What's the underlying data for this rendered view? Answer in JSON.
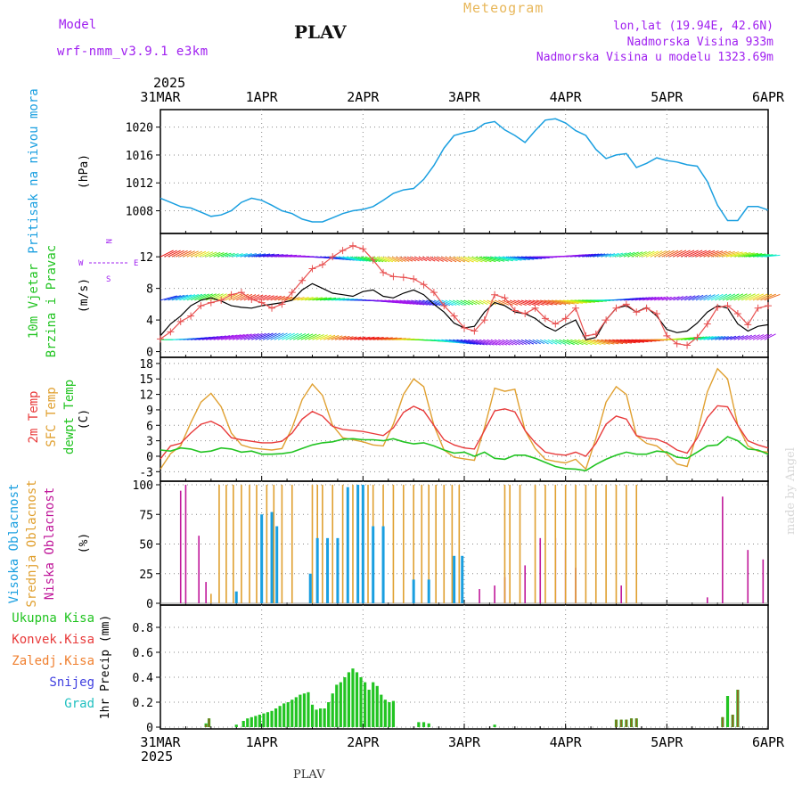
{
  "header": {
    "model_label": "Model",
    "model_name": "wrf-nmm_v3.9.1 e3km",
    "station": "PLAV",
    "product": "Meteogram",
    "lonlat": "lon,lat (19.94E, 42.6N)",
    "elevation": "Nadmorska Visina 933m",
    "model_elevation": "Nadmorska Visina u modelu 1323.69m"
  },
  "footer": {
    "station": "PLAV",
    "credit": "made by Angel"
  },
  "colors": {
    "pressure": "#1a9fe0",
    "tmp2m": "#e83a3a",
    "sfc": "#e0a030",
    "dew": "#22c422",
    "high": "#1a9fe0",
    "mid": "#e0a030",
    "low": "#c0189a",
    "precip": "#22c422",
    "conv": "#e83a3a",
    "frozen": "#f08030",
    "snow": "#4040e0",
    "hail": "#20c0c0",
    "axes": "#000000"
  },
  "chart_data": [
    {
      "type": "line",
      "id": "pressure",
      "ylabel_left": "Pritisak na nivou mora",
      "unit": "(hPa)",
      "ylim": [
        1005,
        1022
      ],
      "yticks": [
        1008,
        1012,
        1016,
        1020
      ],
      "xticks_top": [
        "31MAR",
        "1APR",
        "2APR",
        "3APR",
        "4APR",
        "5APR",
        "6APR"
      ],
      "year_top": "2025",
      "x": [
        0,
        0.1,
        0.2,
        0.3,
        0.4,
        0.5,
        0.6,
        0.7,
        0.8,
        0.9,
        1.0,
        1.1,
        1.2,
        1.3,
        1.4,
        1.5,
        1.6,
        1.7,
        1.8,
        1.9,
        2.0,
        2.1,
        2.2,
        2.3,
        2.4,
        2.5,
        2.6,
        2.7,
        2.8,
        2.9,
        3.0,
        3.1,
        3.2,
        3.3,
        3.4,
        3.5,
        3.6,
        3.7,
        3.8,
        3.9,
        4.0,
        4.1,
        4.2,
        4.3,
        4.4,
        4.5,
        4.6,
        4.7,
        4.8,
        4.9,
        5.0,
        5.1,
        5.2,
        5.3,
        5.4,
        5.5,
        5.6,
        5.7,
        5.8,
        5.9,
        6.0
      ],
      "series": [
        {
          "name": "Pritisak",
          "values": [
            1009.8,
            1009.2,
            1008.6,
            1008.4,
            1007.8,
            1007.2,
            1007.4,
            1008.0,
            1009.2,
            1009.8,
            1009.5,
            1008.8,
            1008.0,
            1007.6,
            1006.8,
            1006.4,
            1006.4,
            1007.0,
            1007.6,
            1008.0,
            1008.2,
            1008.6,
            1009.5,
            1010.5,
            1011.0,
            1011.2,
            1012.5,
            1014.5,
            1017.0,
            1018.8,
            1019.2,
            1019.5,
            1020.5,
            1020.8,
            1019.6,
            1018.8,
            1017.8,
            1019.5,
            1021.0,
            1021.2,
            1020.6,
            1019.5,
            1018.8,
            1016.8,
            1015.5,
            1016.0,
            1016.2,
            1014.2,
            1014.8,
            1015.6,
            1015.2,
            1015.0,
            1014.6,
            1014.4,
            1012.2,
            1008.8,
            1006.6,
            1006.6,
            1008.6,
            1008.6,
            1008.1
          ]
        }
      ]
    },
    {
      "type": "line",
      "id": "wind",
      "ylabel_left": "10m Vjetar",
      "ylabel_left2": "Brzina i Pravac",
      "unit": "(m/s)",
      "compass": [
        "W",
        "N",
        "E",
        "S"
      ],
      "ylim": [
        -0.5,
        14.5
      ],
      "yticks": [
        0,
        4,
        8,
        12
      ],
      "x": [
        0,
        0.1,
        0.2,
        0.3,
        0.4,
        0.5,
        0.6,
        0.7,
        0.8,
        0.9,
        1.0,
        1.1,
        1.2,
        1.3,
        1.4,
        1.5,
        1.6,
        1.7,
        1.8,
        1.9,
        2.0,
        2.1,
        2.2,
        2.3,
        2.4,
        2.5,
        2.6,
        2.7,
        2.8,
        2.9,
        3.0,
        3.1,
        3.2,
        3.3,
        3.4,
        3.5,
        3.6,
        3.7,
        3.8,
        3.9,
        4.0,
        4.1,
        4.2,
        4.3,
        4.4,
        4.5,
        4.6,
        4.7,
        4.8,
        4.9,
        5.0,
        5.1,
        5.2,
        5.3,
        5.4,
        5.5,
        5.6,
        5.7,
        5.8,
        5.9,
        6.0
      ],
      "series": [
        {
          "name": "Brzina",
          "values": [
            2.0,
            3.5,
            4.5,
            5.8,
            6.5,
            6.8,
            6.4,
            5.8,
            5.6,
            5.5,
            5.8,
            6.0,
            6.2,
            6.5,
            7.8,
            8.6,
            8.0,
            7.4,
            7.2,
            7.0,
            7.6,
            7.8,
            7.0,
            6.8,
            7.4,
            7.8,
            7.2,
            6.0,
            5.0,
            3.6,
            3.0,
            3.2,
            5.0,
            6.2,
            5.8,
            5.0,
            4.8,
            4.2,
            3.2,
            2.6,
            3.4,
            4.0,
            1.5,
            1.8,
            4.0,
            5.5,
            5.8,
            5.0,
            5.6,
            4.5,
            2.8,
            2.4,
            2.6,
            3.6,
            5.0,
            5.8,
            5.5,
            3.5,
            2.6,
            3.2,
            3.4
          ]
        },
        {
          "name": "Udari",
          "values": [
            1.6,
            2.5,
            3.8,
            4.5,
            5.8,
            6.2,
            6.5,
            7.2,
            7.5,
            6.6,
            6.2,
            5.5,
            6.0,
            7.5,
            9.0,
            10.5,
            11.0,
            12.0,
            12.8,
            13.4,
            13.0,
            11.6,
            10.0,
            9.5,
            9.4,
            9.2,
            8.5,
            7.5,
            5.8,
            4.5,
            3.0,
            2.6,
            4.0,
            7.2,
            6.8,
            5.2,
            4.8,
            5.5,
            4.2,
            3.5,
            4.2,
            5.5,
            2.0,
            2.2,
            4.0,
            5.5,
            6.0,
            5.0,
            5.5,
            4.8,
            2.0,
            1.0,
            0.8,
            1.8,
            3.5,
            5.6,
            5.8,
            4.8,
            3.4,
            5.5,
            5.8
          ]
        }
      ]
    },
    {
      "type": "line",
      "id": "temperature",
      "ylabel_left": [
        "2m Temp",
        "SFC Temp",
        "dewpt Temp"
      ],
      "unit": "(C)",
      "ylim": [
        -4.5,
        18.5
      ],
      "yticks": [
        -3,
        0,
        3,
        6,
        9,
        12,
        15,
        18
      ],
      "x": [
        0,
        0.1,
        0.2,
        0.3,
        0.4,
        0.5,
        0.6,
        0.7,
        0.8,
        0.9,
        1.0,
        1.1,
        1.2,
        1.3,
        1.4,
        1.5,
        1.6,
        1.7,
        1.8,
        1.9,
        2.0,
        2.1,
        2.2,
        2.3,
        2.4,
        2.5,
        2.6,
        2.7,
        2.8,
        2.9,
        3.0,
        3.1,
        3.2,
        3.3,
        3.4,
        3.5,
        3.6,
        3.7,
        3.8,
        3.9,
        4.0,
        4.1,
        4.2,
        4.3,
        4.4,
        4.5,
        4.6,
        4.7,
        4.8,
        4.9,
        5.0,
        5.1,
        5.2,
        5.3,
        5.4,
        5.5,
        5.6,
        5.7,
        5.8,
        5.9,
        6.0
      ],
      "series": [
        {
          "name": "2m Temp",
          "values": [
            -0.5,
            2.0,
            2.5,
            4.5,
            6.2,
            6.8,
            5.8,
            3.6,
            3.2,
            2.9,
            2.6,
            2.6,
            2.9,
            4.5,
            7.2,
            8.7,
            7.8,
            5.8,
            5.2,
            5.0,
            4.8,
            4.4,
            4.0,
            5.5,
            8.5,
            9.7,
            8.8,
            6.0,
            3.2,
            2.2,
            1.6,
            1.4,
            5.0,
            8.8,
            9.2,
            8.6,
            5.0,
            2.6,
            0.8,
            0.4,
            0.2,
            0.8,
            0.0,
            2.5,
            6.2,
            7.8,
            7.2,
            4.0,
            3.5,
            3.3,
            2.5,
            1.2,
            0.6,
            3.5,
            7.5,
            9.8,
            9.6,
            6.0,
            3.0,
            2.2,
            1.6
          ]
        },
        {
          "name": "SFC Temp",
          "values": [
            -2.5,
            0.5,
            2.0,
            6.5,
            10.5,
            12.2,
            9.6,
            4.5,
            2.2,
            1.6,
            1.4,
            1.2,
            1.5,
            5.5,
            11.0,
            14.0,
            11.8,
            6.0,
            3.6,
            3.2,
            2.8,
            2.2,
            2.0,
            6.2,
            12.0,
            15.0,
            13.5,
            6.0,
            1.2,
            -0.2,
            -0.5,
            -0.8,
            5.5,
            13.2,
            12.6,
            13.0,
            5.0,
            1.5,
            -0.6,
            -1.0,
            -1.3,
            -0.6,
            -2.5,
            3.5,
            10.5,
            13.5,
            12.0,
            4.0,
            2.5,
            2.0,
            0.5,
            -1.5,
            -2.0,
            4.5,
            12.5,
            17.0,
            15.0,
            6.0,
            2.0,
            1.0,
            0.8
          ]
        },
        {
          "name": "dewpt Temp",
          "values": [
            1.2,
            1.0,
            1.6,
            1.4,
            0.8,
            1.0,
            1.6,
            1.4,
            0.8,
            1.0,
            0.4,
            0.4,
            0.5,
            0.8,
            1.5,
            2.2,
            2.6,
            2.8,
            3.3,
            3.4,
            3.2,
            3.2,
            3.0,
            3.4,
            2.8,
            2.4,
            2.6,
            2.0,
            1.2,
            0.6,
            0.8,
            0.0,
            0.8,
            -0.4,
            -0.6,
            0.2,
            0.2,
            -0.4,
            -1.2,
            -2.0,
            -2.4,
            -2.5,
            -2.8,
            -1.6,
            -0.6,
            0.2,
            0.8,
            0.4,
            0.4,
            1.0,
            0.8,
            -0.2,
            -0.4,
            0.8,
            2.0,
            2.2,
            3.8,
            3.0,
            1.4,
            1.2,
            0.4
          ]
        }
      ]
    },
    {
      "type": "bar",
      "id": "cloud",
      "ylabel_left": [
        "Visoka Oblacnost",
        "Srednja Oblacnost",
        "Niska Oblacnost"
      ],
      "unit": "(%)",
      "ylim": [
        0,
        100
      ],
      "yticks": [
        0,
        25,
        50,
        75,
        100
      ],
      "series": [
        {
          "name": "Niska",
          "x": [
            0.2,
            0.25,
            0.38,
            0.45,
            1.55,
            3.15,
            3.3,
            3.4,
            3.6,
            3.75,
            3.9,
            4.0,
            4.1,
            4.55,
            5.4,
            5.55,
            5.8,
            5.95
          ],
          "values": [
            95,
            100,
            57,
            18,
            20,
            12,
            15,
            22,
            32,
            55,
            55,
            45,
            30,
            15,
            5,
            90,
            45,
            37
          ]
        },
        {
          "name": "Srednja",
          "x": [
            0.5,
            0.58,
            0.65,
            0.72,
            0.8,
            0.88,
            0.95,
            1.05,
            1.12,
            1.2,
            1.3,
            1.5,
            1.55,
            1.6,
            1.7,
            1.8,
            1.9,
            2.0,
            2.05,
            2.1,
            2.2,
            2.3,
            2.4,
            2.5,
            2.58,
            2.65,
            2.72,
            2.8,
            2.88,
            2.95,
            3.4,
            3.45,
            3.55,
            3.7,
            3.8,
            3.9,
            4.0,
            4.1,
            4.2,
            4.3,
            4.4,
            4.5,
            4.6,
            4.7
          ],
          "values": [
            8,
            100,
            100,
            100,
            100,
            100,
            100,
            100,
            100,
            100,
            100,
            100,
            100,
            100,
            100,
            100,
            100,
            100,
            100,
            100,
            100,
            100,
            100,
            100,
            100,
            100,
            100,
            100,
            100,
            100,
            100,
            100,
            100,
            100,
            100,
            100,
            100,
            100,
            100,
            100,
            100,
            100,
            100,
            100
          ]
        },
        {
          "name": "Visoka",
          "x": [
            0.75,
            1.0,
            1.1,
            1.15,
            1.48,
            1.55,
            1.65,
            1.75,
            1.85,
            1.95,
            2.0,
            2.1,
            2.2,
            2.5,
            2.65,
            2.9,
            2.98
          ],
          "values": [
            10,
            75,
            77,
            65,
            25,
            55,
            55,
            55,
            98,
            100,
            100,
            65,
            65,
            20,
            20,
            40,
            40
          ]
        }
      ]
    },
    {
      "type": "bar",
      "id": "precip",
      "ylabel_left": [
        "Ukupna Kisa",
        "Konvek.Kisa",
        "Zaledj.Kisa",
        "Snijeg",
        "Grad"
      ],
      "unit": "1hr Precip (mm)",
      "ylim": [
        0,
        0.95
      ],
      "yticks": [
        0,
        0.2,
        0.4,
        0.6,
        0.8
      ],
      "xticks_bottom": [
        "31MAR",
        "1APR",
        "2APR",
        "3APR",
        "4APR",
        "5APR",
        "6APR"
      ],
      "year_bottom": "2025",
      "series": [
        {
          "name": "Ukupna",
          "x": [
            0.45,
            0.48,
            0.75,
            0.82,
            0.86,
            0.9,
            0.94,
            0.98,
            1.02,
            1.06,
            1.1,
            1.14,
            1.18,
            1.22,
            1.26,
            1.3,
            1.34,
            1.38,
            1.42,
            1.46,
            1.5,
            1.54,
            1.58,
            1.62,
            1.66,
            1.7,
            1.74,
            1.78,
            1.82,
            1.86,
            1.9,
            1.94,
            1.98,
            2.02,
            2.06,
            2.1,
            2.14,
            2.18,
            2.22,
            2.26,
            2.3,
            2.55,
            2.6,
            2.65,
            3.3,
            4.5,
            4.55,
            4.6,
            4.65,
            4.7,
            5.55,
            5.6,
            5.65,
            5.7
          ],
          "values": [
            0.03,
            0.07,
            0.02,
            0.05,
            0.07,
            0.08,
            0.09,
            0.1,
            0.11,
            0.12,
            0.13,
            0.15,
            0.17,
            0.19,
            0.2,
            0.22,
            0.24,
            0.26,
            0.27,
            0.28,
            0.18,
            0.14,
            0.15,
            0.15,
            0.2,
            0.27,
            0.34,
            0.36,
            0.4,
            0.44,
            0.47,
            0.44,
            0.4,
            0.36,
            0.3,
            0.36,
            0.33,
            0.26,
            0.22,
            0.2,
            0.21,
            0.04,
            0.04,
            0.03,
            0.02,
            0.06,
            0.06,
            0.06,
            0.07,
            0.07,
            0.08,
            0.25,
            0.1,
            0.3
          ]
        },
        {
          "name": "Konvek",
          "x": [
            0.45,
            0.48,
            4.5,
            4.55,
            4.6,
            4.65,
            4.7,
            5.55,
            5.65,
            5.7
          ],
          "values": [
            0.02,
            0.07,
            0.06,
            0.06,
            0.06,
            0.07,
            0.07,
            0.08,
            0.1,
            0.3
          ]
        }
      ]
    }
  ]
}
